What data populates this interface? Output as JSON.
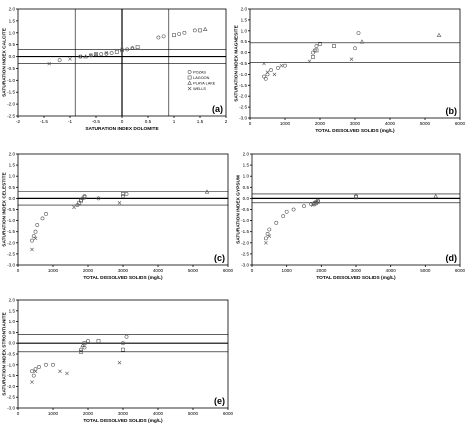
{
  "legend": [
    {
      "name": "POZAS",
      "marker": "circle"
    },
    {
      "name": "LAGOON",
      "marker": "square"
    },
    {
      "name": "PLAYA LAKE",
      "marker": "triangle"
    },
    {
      "name": "WELLS",
      "marker": "x"
    }
  ],
  "marker_color": "#555555",
  "chart_data": [
    {
      "id": "a",
      "type": "scatter",
      "panel_label": "(a)",
      "xlabel": "SATURATION INDEX DOLOMITE",
      "ylabel": "SATURATION INDEX CALCITE",
      "xlim": [
        -2,
        2
      ],
      "ylim": [
        -2.5,
        2
      ],
      "xticks": [
        -2,
        -1.5,
        -1,
        -0.5,
        0,
        0.5,
        1,
        1.5,
        2
      ],
      "xtick_labels": [
        "-2",
        "-1.5",
        "-1",
        "-0.5",
        "0",
        "0.5",
        "1",
        "1.5",
        "2"
      ],
      "yticks": [
        -2.5,
        -2,
        -1.5,
        -1,
        -0.5,
        0,
        0.5,
        1,
        1.5,
        2
      ],
      "ytick_labels": [
        "-2.5",
        "-2.0",
        "-1.5",
        "-1.0",
        "-0.5",
        "0.0",
        "0.5",
        "1.0",
        "1.5",
        "2.0"
      ],
      "hlines": [
        0.3,
        -0.3
      ],
      "hlines_bold": [
        0
      ],
      "vlines": [
        -0.9,
        0.9
      ],
      "vlines_bold": [
        0
      ],
      "legend_position": "bottom-right",
      "series": [
        {
          "marker": "circle",
          "x": [
            -1.2,
            -0.8,
            -0.6,
            -0.4,
            -0.3,
            -0.2,
            0.0,
            0.1,
            0.2,
            0.7,
            0.8,
            1.1,
            1.2,
            1.4
          ],
          "y": [
            -0.15,
            0.0,
            0.05,
            0.1,
            0.12,
            0.15,
            0.25,
            0.3,
            0.35,
            0.8,
            0.85,
            0.95,
            1.0,
            1.1
          ]
        },
        {
          "marker": "square",
          "x": [
            -0.5,
            -0.1,
            0.3,
            1.0,
            1.5
          ],
          "y": [
            0.1,
            0.2,
            0.4,
            0.9,
            1.1
          ]
        },
        {
          "marker": "triangle",
          "x": [
            -0.7,
            0.2,
            1.6
          ],
          "y": [
            0.0,
            0.35,
            1.15
          ]
        },
        {
          "marker": "x",
          "x": [
            -1.4,
            -1.0,
            -0.8,
            -0.6,
            -0.5,
            -0.3,
            0.0
          ],
          "y": [
            -0.3,
            -0.1,
            0.0,
            0.05,
            0.1,
            0.15,
            0.3
          ]
        }
      ]
    },
    {
      "id": "b",
      "type": "scatter",
      "panel_label": "(b)",
      "xlabel": "TOTAL DISSOLVED SOLIDS (mg/L)",
      "ylabel": "SATURATION INDEX MAGNESITE",
      "xlim": [
        0,
        6000
      ],
      "ylim": [
        -3,
        2
      ],
      "xticks": [
        0,
        1000,
        2000,
        3000,
        4000,
        5000,
        6000
      ],
      "xtick_labels": [
        "0",
        "1000",
        "2000",
        "3000",
        "4000",
        "5000",
        "6000"
      ],
      "yticks": [
        -3,
        -2.5,
        -2,
        -1.5,
        -1,
        -0.5,
        0,
        0.5,
        1,
        1.5,
        2
      ],
      "ytick_labels": [
        "-3.0",
        "-2.5",
        "-2.0",
        "-1.5",
        "-1.0",
        "-0.5",
        "0.0",
        "0.5",
        "1.0",
        "1.5",
        "2.0"
      ],
      "hlines": [
        0.45,
        -0.45
      ],
      "hlines_bold": [],
      "series": [
        {
          "marker": "circle",
          "x": [
            400,
            450,
            500,
            600,
            800,
            1000,
            1800,
            1850,
            1900,
            3000,
            3100
          ],
          "y": [
            -1.1,
            -1.2,
            -1.0,
            -0.8,
            -0.7,
            -0.6,
            0.0,
            0.1,
            0.3,
            0.2,
            0.9
          ]
        },
        {
          "marker": "square",
          "x": [
            1800,
            1900,
            2000,
            2400
          ],
          "y": [
            -0.2,
            0.1,
            0.4,
            0.3
          ]
        },
        {
          "marker": "triangle",
          "x": [
            3200,
            5400
          ],
          "y": [
            0.5,
            0.8
          ]
        },
        {
          "marker": "x",
          "x": [
            400,
            500,
            700,
            900,
            1700,
            2900
          ],
          "y": [
            -0.5,
            -0.9,
            -1.0,
            -0.6,
            -0.4,
            -0.3
          ]
        }
      ]
    },
    {
      "id": "c",
      "type": "scatter",
      "panel_label": "(c)",
      "xlabel": "TOTAL DISSOLVED SOLIDS (mg/L)",
      "ylabel": "SATURATION INDEX CELESTITE",
      "xlim": [
        0,
        6000
      ],
      "ylim": [
        -3,
        2
      ],
      "xticks": [
        0,
        1000,
        2000,
        3000,
        4000,
        5000,
        6000
      ],
      "xtick_labels": [
        "0",
        "1000",
        "2000",
        "3000",
        "4000",
        "5000",
        "6000"
      ],
      "yticks": [
        -3,
        -2.5,
        -2,
        -1.5,
        -1,
        -0.5,
        0,
        0.5,
        1,
        1.5,
        2
      ],
      "ytick_labels": [
        "-3.0",
        "-2.5",
        "-2.0",
        "-1.5",
        "-1.0",
        "-0.5",
        "0.0",
        "0.5",
        "1.0",
        "1.5",
        "2.0"
      ],
      "hlines": [
        0.3,
        -0.3
      ],
      "hlines_bold": [
        0
      ],
      "series": [
        {
          "marker": "circle",
          "x": [
            400,
            450,
            500,
            550,
            700,
            800,
            1700,
            1800,
            1850,
            1900,
            2300,
            3000,
            3100
          ],
          "y": [
            -1.9,
            -1.7,
            -1.5,
            -1.2,
            -0.9,
            -0.7,
            -0.3,
            -0.1,
            0.0,
            0.1,
            0.0,
            0.1,
            0.2
          ]
        },
        {
          "marker": "square",
          "x": [
            1750,
            1800,
            1900,
            3000
          ],
          "y": [
            -0.2,
            -0.1,
            0.05,
            0.2
          ]
        },
        {
          "marker": "triangle",
          "x": [
            5400
          ],
          "y": [
            0.3
          ]
        },
        {
          "marker": "x",
          "x": [
            400,
            500,
            1600,
            2900
          ],
          "y": [
            -2.3,
            -1.8,
            -0.4,
            -0.2
          ]
        }
      ]
    },
    {
      "id": "d",
      "type": "scatter",
      "panel_label": "(d)",
      "xlabel": "TOTAL DISSOLVED SOLIDS (mg/L)",
      "ylabel": "SATURATION INDEX GYPSUM",
      "xlim": [
        0,
        6000
      ],
      "ylim": [
        -3,
        2
      ],
      "xticks": [
        0,
        1000,
        2000,
        3000,
        4000,
        5000,
        6000
      ],
      "xtick_labels": [
        "0",
        "1000",
        "2000",
        "3000",
        "4000",
        "5000",
        "6000"
      ],
      "yticks": [
        -3,
        -2.5,
        -2,
        -1.5,
        -1,
        -0.5,
        0,
        0.5,
        1,
        1.5,
        2
      ],
      "ytick_labels": [
        "-3.0",
        "-2.5",
        "-2.0",
        "-1.5",
        "-1.0",
        "-0.5",
        "0.0",
        "0.5",
        "1.0",
        "1.5",
        "2.0"
      ],
      "hlines": [
        0.2,
        -0.2
      ],
      "hlines_bold": [
        0
      ],
      "series": [
        {
          "marker": "circle",
          "x": [
            400,
            450,
            500,
            700,
            900,
            1000,
            1200,
            1500,
            1700,
            1800,
            1850,
            1900,
            3000
          ],
          "y": [
            -1.8,
            -1.6,
            -1.4,
            -1.1,
            -0.8,
            -0.6,
            -0.5,
            -0.35,
            -0.25,
            -0.2,
            -0.15,
            -0.1,
            0.1
          ]
        },
        {
          "marker": "square",
          "x": [
            1800,
            1850,
            1900,
            3000
          ],
          "y": [
            -0.25,
            -0.2,
            -0.15,
            0.05
          ]
        },
        {
          "marker": "triangle",
          "x": [
            5300
          ],
          "y": [
            0.1
          ]
        },
        {
          "marker": "x",
          "x": [
            400,
            500,
            1750
          ],
          "y": [
            -2.0,
            -1.7,
            -0.3
          ]
        }
      ]
    },
    {
      "id": "e",
      "type": "scatter",
      "panel_label": "(e)",
      "xlabel": "TOTAL DISSOLVED SOLIDS (mg/L)",
      "ylabel": "SATURATION INDEX STRONTIANITE",
      "xlim": [
        0,
        6000
      ],
      "ylim": [
        -3,
        2
      ],
      "xticks": [
        0,
        1000,
        2000,
        3000,
        4000,
        5000,
        6000
      ],
      "xtick_labels": [
        "0",
        "1000",
        "2000",
        "3000",
        "4000",
        "5000",
        "6000"
      ],
      "yticks": [
        -3,
        -2.5,
        -2,
        -1.5,
        -1,
        -0.5,
        0,
        0.5,
        1,
        1.5,
        2
      ],
      "ytick_labels": [
        "-3.0",
        "-2.5",
        "-2.0",
        "-1.5",
        "-1.0",
        "-0.5",
        "0.0",
        "0.5",
        "1.0",
        "1.5",
        "2.0"
      ],
      "hlines": [
        0.4,
        -0.4
      ],
      "hlines_bold": [
        0
      ],
      "series": [
        {
          "marker": "circle",
          "x": [
            400,
            450,
            500,
            600,
            800,
            1000,
            1800,
            1900,
            2000,
            3000,
            3100
          ],
          "y": [
            -1.3,
            -1.5,
            -1.2,
            -1.1,
            -1.0,
            -1.0,
            -0.3,
            -0.2,
            0.1,
            0.0,
            0.3
          ]
        },
        {
          "marker": "square",
          "x": [
            1800,
            1900,
            2300,
            3000
          ],
          "y": [
            -0.4,
            0.0,
            0.1,
            -0.3
          ]
        },
        {
          "marker": "triangle",
          "x": [
            1850
          ],
          "y": [
            -0.1
          ]
        },
        {
          "marker": "x",
          "x": [
            400,
            500,
            1200,
            1400,
            2900
          ],
          "y": [
            -1.8,
            -1.3,
            -1.3,
            -1.4,
            -0.9
          ]
        }
      ]
    }
  ]
}
